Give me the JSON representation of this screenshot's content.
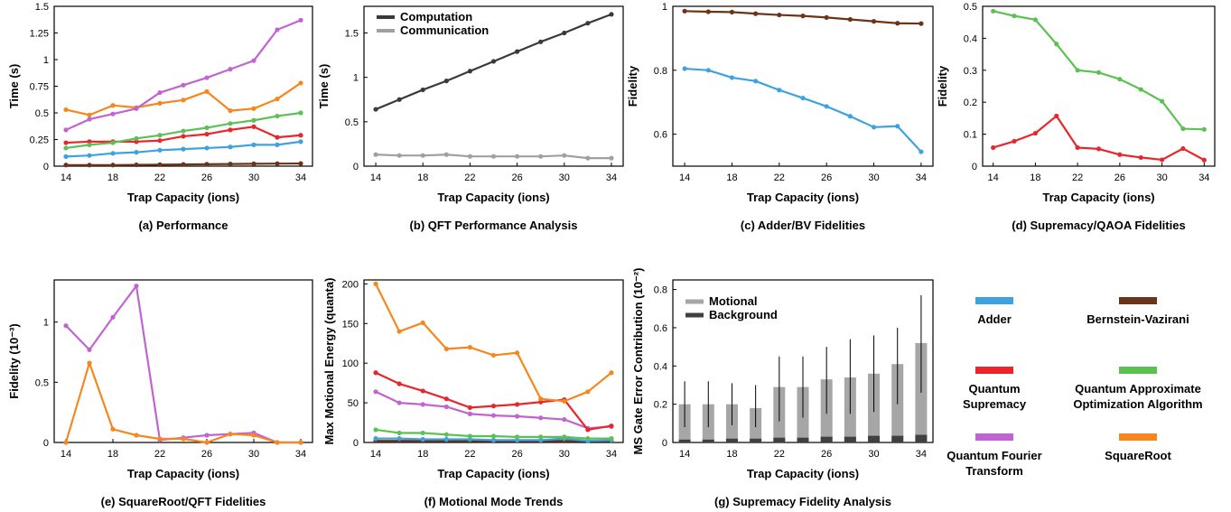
{
  "legend": {
    "entries": [
      {
        "label_lines": [
          "Adder"
        ],
        "color": "#3ea2e0"
      },
      {
        "label_lines": [
          "Bernstein-Vazirani"
        ],
        "color": "#6b3418"
      },
      {
        "label_lines": [
          "Quantum",
          "Supremacy"
        ],
        "color": "#e8262b"
      },
      {
        "label_lines": [
          "Quantum Approximate",
          "Optimization Algorithm"
        ],
        "color": "#5cc152"
      },
      {
        "label_lines": [
          "Quantum Fourier",
          "Transform"
        ],
        "color": "#c064d2"
      },
      {
        "label_lines": [
          "SquareRoot"
        ],
        "color": "#f7861d"
      }
    ]
  },
  "chart_data": [
    {
      "id": "a",
      "type": "line",
      "caption": "(a) Performance",
      "xlabel": "Trap Capacity (ions)",
      "ylabel": "Time (s)",
      "xlim": [
        13,
        35
      ],
      "ylim": [
        0,
        1.5
      ],
      "xticks": [
        "14",
        "18",
        "22",
        "26",
        "30",
        "34"
      ],
      "yticks": [
        "0",
        "0.25",
        "0.5",
        "0.75",
        "1",
        "1.25",
        "1.5"
      ],
      "x": [
        14,
        16,
        18,
        20,
        22,
        24,
        26,
        28,
        30,
        32,
        34
      ],
      "series": [
        {
          "color": "#6b3418",
          "values": [
            0.01,
            0.01,
            0.01,
            0.012,
            0.014,
            0.016,
            0.018,
            0.02,
            0.022,
            0.024,
            0.025
          ]
        },
        {
          "color": "#3ea2e0",
          "values": [
            0.09,
            0.1,
            0.12,
            0.13,
            0.15,
            0.16,
            0.17,
            0.18,
            0.2,
            0.2,
            0.23
          ]
        },
        {
          "color": "#e8262b",
          "values": [
            0.22,
            0.23,
            0.23,
            0.23,
            0.24,
            0.28,
            0.3,
            0.34,
            0.37,
            0.27,
            0.29
          ]
        },
        {
          "color": "#5cc152",
          "values": [
            0.17,
            0.2,
            0.22,
            0.26,
            0.29,
            0.33,
            0.36,
            0.4,
            0.43,
            0.47,
            0.5
          ]
        },
        {
          "color": "#f7861d",
          "values": [
            0.53,
            0.48,
            0.57,
            0.55,
            0.59,
            0.62,
            0.7,
            0.52,
            0.54,
            0.63,
            0.78
          ]
        },
        {
          "color": "#c064d2",
          "values": [
            0.34,
            0.44,
            0.49,
            0.54,
            0.69,
            0.76,
            0.83,
            0.91,
            0.99,
            1.28,
            1.37
          ]
        }
      ]
    },
    {
      "id": "b",
      "type": "line",
      "caption": "(b) QFT Performance Analysis",
      "xlabel": "Trap Capacity (ions)",
      "ylabel": "Time (s)",
      "xlim": [
        13,
        35
      ],
      "ylim": [
        0,
        1.8
      ],
      "xticks": [
        "14",
        "18",
        "22",
        "26",
        "30",
        "34"
      ],
      "yticks": [
        "0",
        "0.5",
        "1",
        "1.5"
      ],
      "x": [
        14,
        16,
        18,
        20,
        22,
        24,
        26,
        28,
        30,
        32,
        34
      ],
      "series": [
        {
          "name": "Computation",
          "color": "#3a3a3a",
          "values": [
            0.64,
            0.75,
            0.86,
            0.96,
            1.07,
            1.18,
            1.29,
            1.4,
            1.5,
            1.61,
            1.71
          ]
        },
        {
          "name": "Communication",
          "color": "#a0a0a0",
          "values": [
            0.13,
            0.12,
            0.12,
            0.13,
            0.11,
            0.11,
            0.11,
            0.11,
            0.12,
            0.09,
            0.09
          ]
        }
      ],
      "legend_position": "top-left"
    },
    {
      "id": "c",
      "type": "line",
      "caption": "(c) Adder/BV Fidelities",
      "xlabel": "Trap Capacity (ions)",
      "ylabel": "Fidelity",
      "xlim": [
        13,
        35
      ],
      "ylim": [
        0.5,
        1.0
      ],
      "xticks": [
        "14",
        "18",
        "22",
        "26",
        "30",
        "34"
      ],
      "yticks": [
        "0.6",
        "0.8",
        "1"
      ],
      "x": [
        14,
        16,
        18,
        20,
        22,
        24,
        26,
        28,
        30,
        32,
        34
      ],
      "series": [
        {
          "color": "#6b3418",
          "values": [
            0.985,
            0.983,
            0.982,
            0.977,
            0.973,
            0.97,
            0.965,
            0.959,
            0.953,
            0.947,
            0.946
          ]
        },
        {
          "color": "#3ea2e0",
          "values": [
            0.805,
            0.8,
            0.777,
            0.766,
            0.738,
            0.713,
            0.687,
            0.656,
            0.622,
            0.625,
            0.545
          ]
        }
      ]
    },
    {
      "id": "d",
      "type": "line",
      "caption": "(d) Supremacy/QAOA Fidelities",
      "xlabel": "Trap Capacity (ions)",
      "ylabel": "Fidelity",
      "xlim": [
        13,
        35
      ],
      "ylim": [
        0,
        0.5
      ],
      "xticks": [
        "14",
        "18",
        "22",
        "26",
        "30",
        "34"
      ],
      "yticks": [
        "0",
        "0.1",
        "0.2",
        "0.3",
        "0.4",
        "0.5"
      ],
      "x": [
        14,
        16,
        18,
        20,
        22,
        24,
        26,
        28,
        30,
        32,
        34
      ],
      "series": [
        {
          "color": "#5cc152",
          "values": [
            0.485,
            0.47,
            0.458,
            0.382,
            0.3,
            0.293,
            0.272,
            0.24,
            0.203,
            0.117,
            0.115
          ]
        },
        {
          "color": "#e8262b",
          "values": [
            0.058,
            0.078,
            0.103,
            0.157,
            0.058,
            0.054,
            0.036,
            0.027,
            0.02,
            0.055,
            0.019
          ]
        }
      ]
    },
    {
      "id": "e",
      "type": "line",
      "caption": "(e) SquareRoot/QFT Fidelities",
      "xlabel": "Trap Capacity (ions)",
      "ylabel": "Fidelity  (10⁻³)",
      "xlim": [
        13,
        35
      ],
      "ylim": [
        0,
        1.35
      ],
      "xticks": [
        "14",
        "18",
        "22",
        "26",
        "30",
        "34"
      ],
      "yticks": [
        "0",
        "0.5",
        "1"
      ],
      "x": [
        14,
        16,
        18,
        20,
        22,
        24,
        26,
        28,
        30,
        32,
        34
      ],
      "series": [
        {
          "color": "#c064d2",
          "values": [
            0.97,
            0.77,
            1.04,
            1.3,
            0.02,
            0.04,
            0.06,
            0.07,
            0.08,
            0.0,
            0.0
          ]
        },
        {
          "color": "#f7861d",
          "values": [
            0.0,
            0.66,
            0.11,
            0.06,
            0.03,
            0.03,
            0.0,
            0.07,
            0.06,
            0.0,
            0.0
          ]
        }
      ]
    },
    {
      "id": "f",
      "type": "line",
      "caption": "(f) Motional Mode Trends",
      "xlabel": "Trap Capacity (ions)",
      "ylabel": "Max Motional Energy (quanta)",
      "xlim": [
        13,
        35
      ],
      "ylim": [
        0,
        205
      ],
      "xticks": [
        "14",
        "18",
        "22",
        "26",
        "30",
        "34"
      ],
      "yticks": [
        "0",
        "50",
        "100",
        "150",
        "200"
      ],
      "x": [
        14,
        16,
        18,
        20,
        22,
        24,
        26,
        28,
        30,
        32,
        34
      ],
      "series": [
        {
          "color": "#6b3418",
          "values": [
            2,
            2,
            2,
            2,
            2,
            2,
            2,
            2,
            2,
            2,
            2
          ]
        },
        {
          "color": "#3ea2e0",
          "values": [
            5,
            5,
            4,
            4,
            4,
            3,
            3,
            3,
            5,
            2,
            3
          ]
        },
        {
          "color": "#5cc152",
          "values": [
            16,
            12,
            12,
            10,
            8,
            8,
            7,
            7,
            7,
            5,
            5
          ]
        },
        {
          "color": "#c064d2",
          "values": [
            64,
            50,
            48,
            45,
            36,
            34,
            33,
            31,
            29,
            18,
            20
          ]
        },
        {
          "color": "#e8262b",
          "values": [
            88,
            74,
            65,
            55,
            44,
            46,
            48,
            51,
            54,
            16,
            21
          ]
        },
        {
          "color": "#f7861d",
          "values": [
            200,
            140,
            151,
            118,
            120,
            110,
            113,
            55,
            52,
            64,
            88
          ]
        }
      ]
    },
    {
      "id": "g",
      "type": "bar",
      "caption": "(g) Supremacy Fidelity Analysis",
      "xlabel": "Trap Capacity (ions)",
      "ylabel": "MS Gate Error Contribution (10⁻²)",
      "xlim": [
        13,
        35
      ],
      "ylim": [
        0,
        0.85
      ],
      "xticks": [
        "14",
        "18",
        "22",
        "26",
        "30",
        "34"
      ],
      "yticks": [
        "0",
        "0.2",
        "0.4",
        "0.6",
        "0.8"
      ],
      "x": [
        14,
        16,
        18,
        20,
        22,
        24,
        26,
        28,
        30,
        32,
        34
      ],
      "series": [
        {
          "name": "Motional",
          "color": "#a6a6a6",
          "values": [
            0.2,
            0.2,
            0.2,
            0.18,
            0.29,
            0.29,
            0.33,
            0.34,
            0.36,
            0.41,
            0.52
          ]
        },
        {
          "name": "Background",
          "color": "#404040",
          "values": [
            0.015,
            0.015,
            0.02,
            0.02,
            0.025,
            0.025,
            0.03,
            0.03,
            0.035,
            0.035,
            0.04
          ]
        }
      ],
      "error_low": [
        0.08,
        0.08,
        0.09,
        0.08,
        0.11,
        0.13,
        0.15,
        0.15,
        0.16,
        0.2,
        0.26
      ],
      "error_high": [
        0.32,
        0.32,
        0.31,
        0.3,
        0.45,
        0.45,
        0.5,
        0.54,
        0.56,
        0.6,
        0.77
      ],
      "legend_position": "top-left"
    }
  ]
}
